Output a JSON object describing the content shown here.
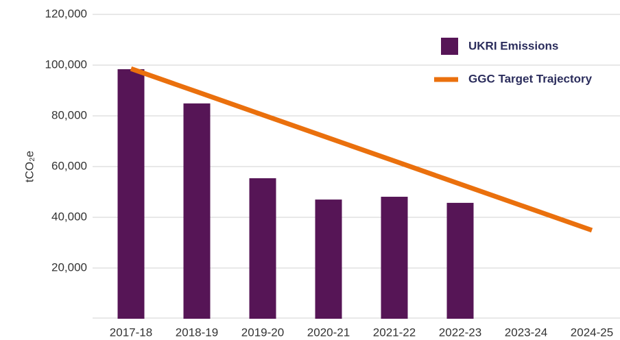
{
  "chart_data": {
    "type": "bar-line",
    "y_label": "tCO₂e",
    "categories": [
      "2017-18",
      "2018-19",
      "2019-20",
      "2020-21",
      "2021-22",
      "2022-23",
      "2023-24",
      "2024-25"
    ],
    "series": [
      {
        "name": "UKRI Emissions",
        "type": "bar",
        "color": "#561556",
        "values": [
          98400,
          84900,
          55400,
          47000,
          48100,
          45700,
          null,
          null
        ]
      },
      {
        "name": "GGC Target Trajectory",
        "type": "line",
        "color": "#ea700d",
        "values": [
          98600,
          89500,
          80400,
          71300,
          62200,
          53100,
          44000,
          34900
        ]
      }
    ],
    "ylim": [
      0,
      120000
    ],
    "yticks": [
      {
        "value": 20000,
        "label": "20,000"
      },
      {
        "value": 40000,
        "label": "40,000"
      },
      {
        "value": 60000,
        "label": "60,000"
      },
      {
        "value": 80000,
        "label": "80,000"
      },
      {
        "value": 100000,
        "label": "100,000"
      },
      {
        "value": 120000,
        "label": "120,000"
      }
    ],
    "grid": true
  }
}
